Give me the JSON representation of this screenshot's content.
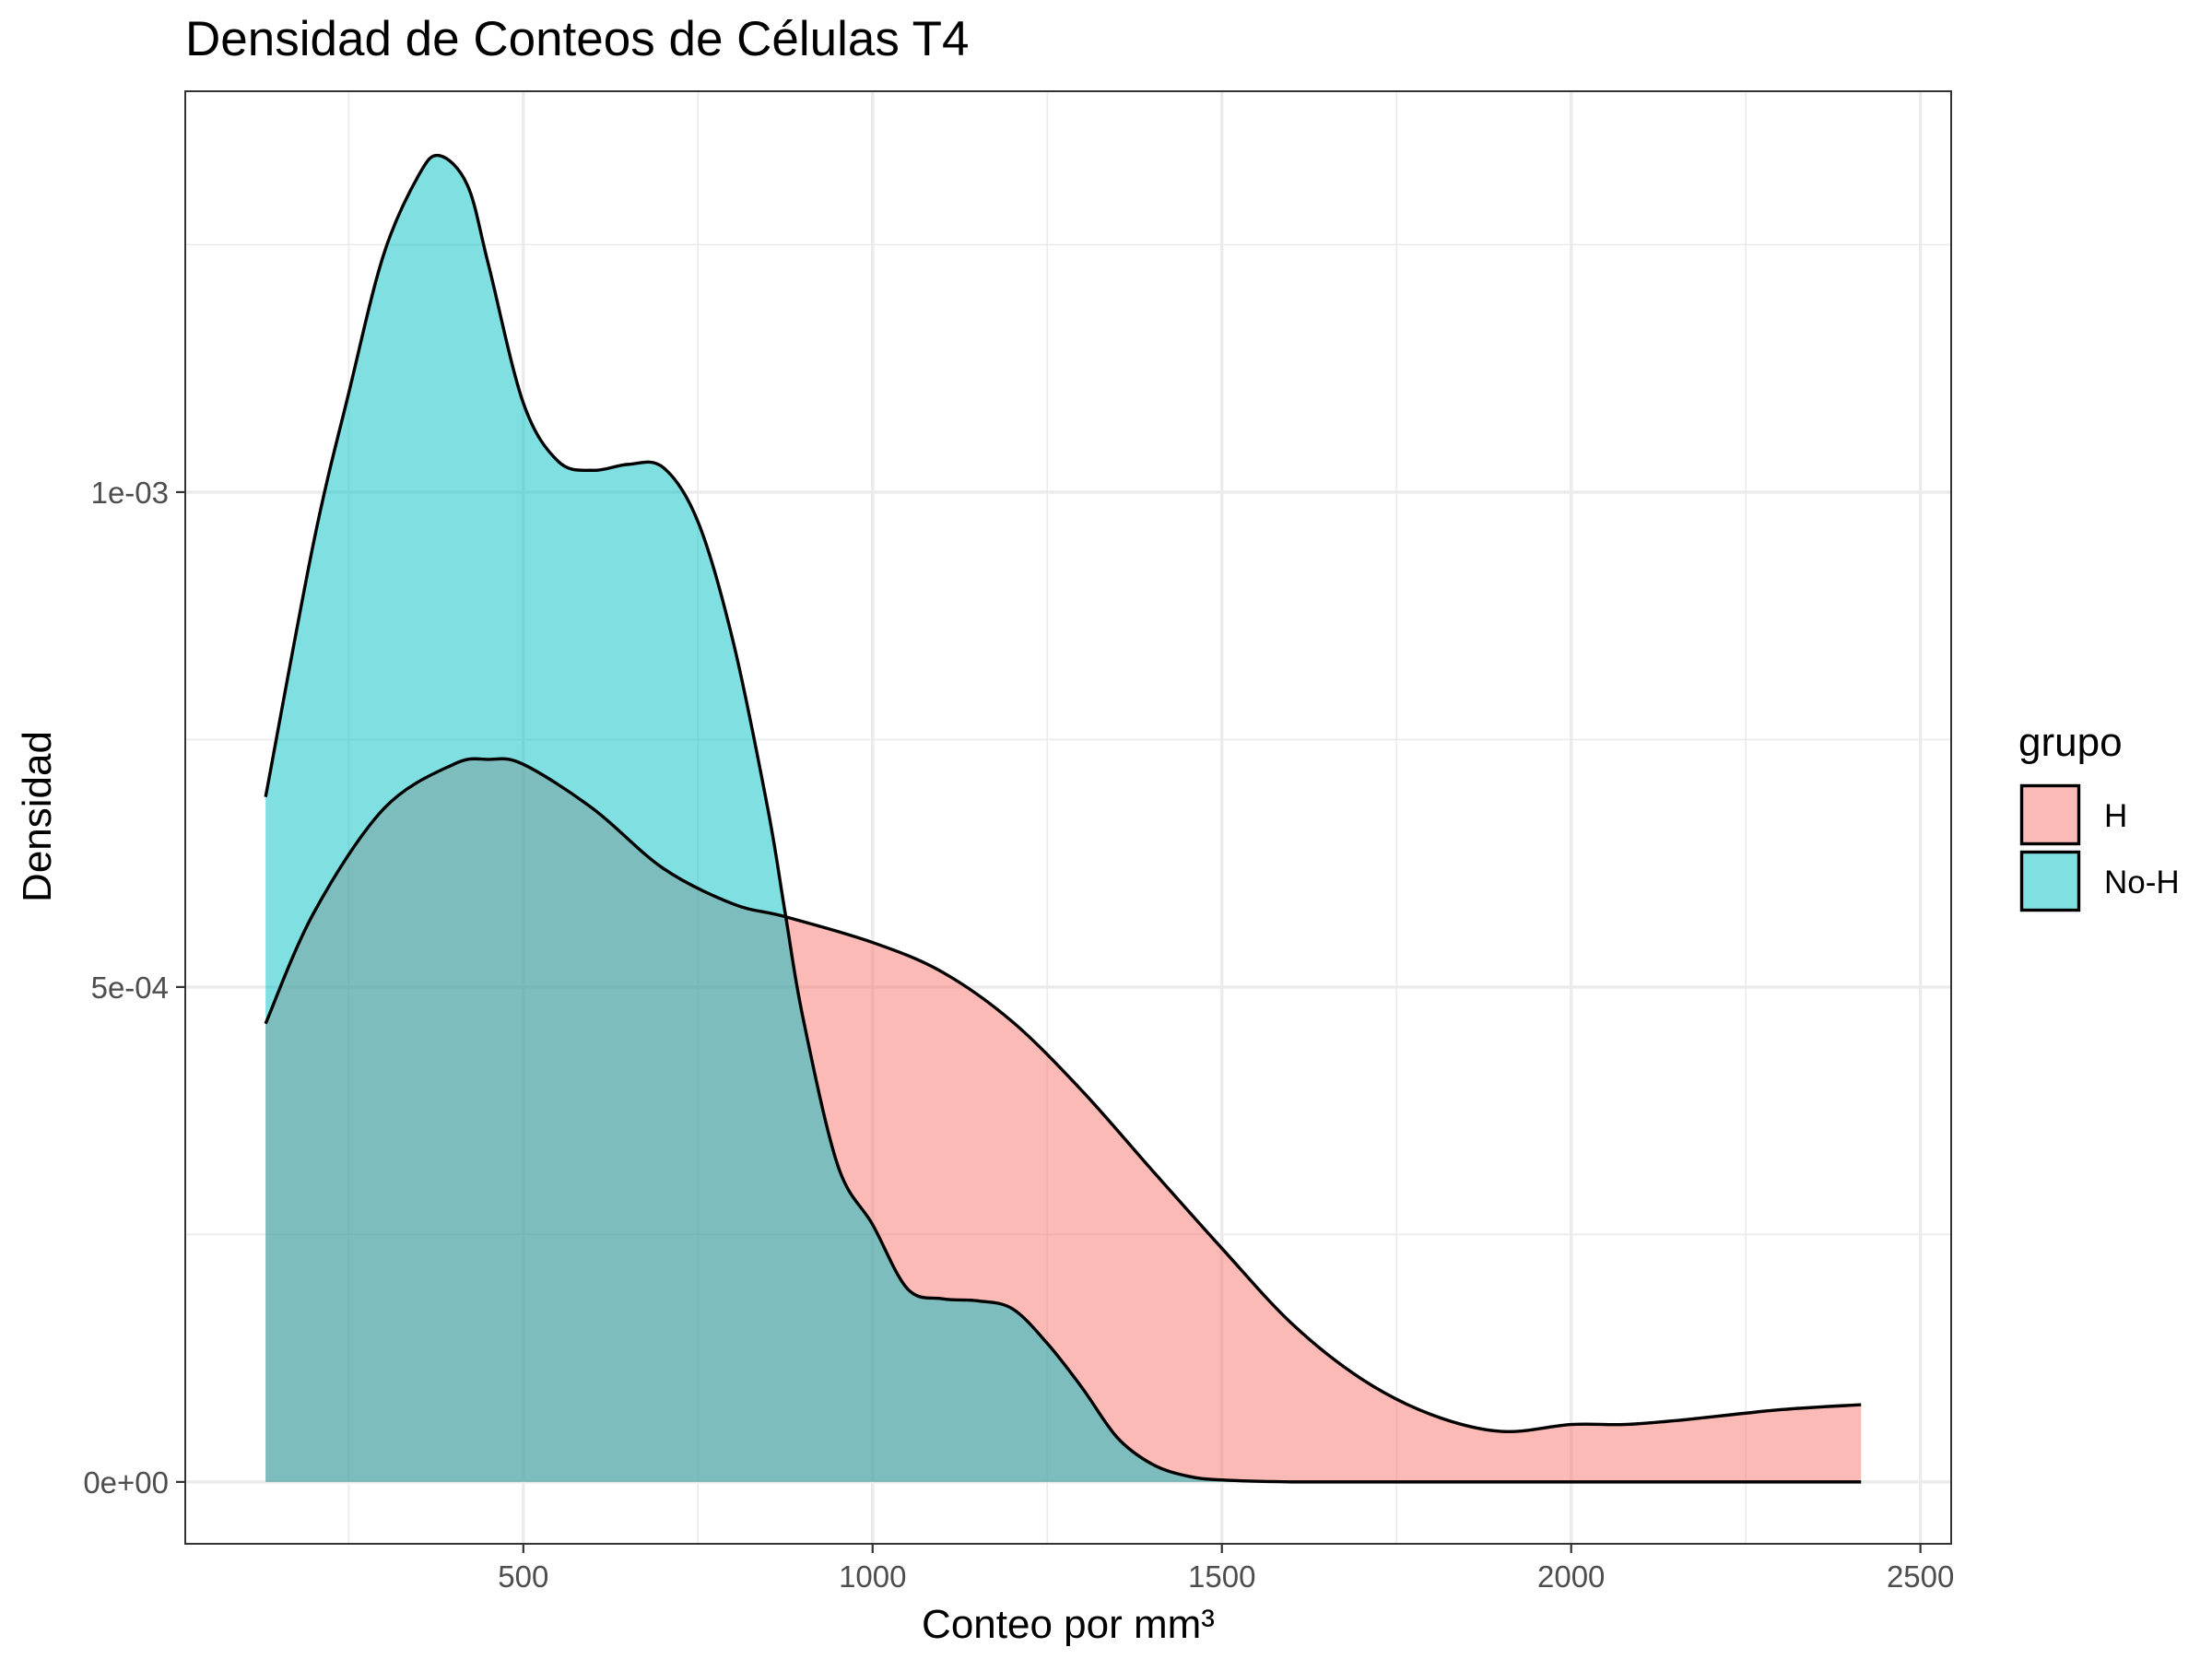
{
  "chart_data": {
    "type": "area",
    "title": "Densidad de Conteos de Células T4",
    "xlabel": "Conteo por mm³",
    "ylabel": "Densidad",
    "xlim": [
      16,
      2544
    ],
    "ylim": [
      -6.25e-05,
      0.001405
    ],
    "x_ticks": [
      500,
      1000,
      1500,
      2000,
      2500
    ],
    "x_tick_labels": [
      "500",
      "1000",
      "1500",
      "2000",
      "2500"
    ],
    "y_ticks": [
      0,
      0.0005,
      0.001
    ],
    "y_tick_labels": [
      "0e+00",
      "5e-04",
      "1e-03"
    ],
    "grid": true,
    "legend": {
      "title": "grupo",
      "position": "right"
    },
    "series": [
      {
        "name": "H",
        "color": "#F8766D",
        "opacity": 0.5,
        "x": [
          131,
          200,
          300,
          400,
          450,
          500,
          600,
          700,
          800,
          875,
          1000,
          1100,
          1200,
          1300,
          1400,
          1500,
          1600,
          1700,
          1800,
          1900,
          2000,
          2075,
          2150,
          2300,
          2415
        ],
        "y": [
          0.000463,
          0.000575,
          0.00068,
          0.000725,
          0.00073,
          0.000725,
          0.00068,
          0.00062,
          0.000584,
          0.000571,
          0.000545,
          0.000515,
          0.000465,
          0.000395,
          0.000315,
          0.000236,
          0.00016,
          0.000104,
          6.8e-05,
          5.1e-05,
          5.8e-05,
          5.8e-05,
          6.2e-05,
          7.3e-05,
          7.8e-05
        ]
      },
      {
        "name": "No-H",
        "color": "#00BFC4",
        "opacity": 0.5,
        "x": [
          131,
          200,
          250,
          300,
          350,
          380,
          420,
          450,
          500,
          550,
          600,
          650,
          700,
          750,
          800,
          850,
          875,
          900,
          950,
          1000,
          1050,
          1100,
          1150,
          1200,
          1250,
          1300,
          1350,
          1400,
          1450,
          1500,
          1600,
          1700,
          1800,
          2000,
          2200,
          2415
        ],
        "y": [
          0.000692,
          0.00095,
          0.0011,
          0.00124,
          0.00132,
          0.00134,
          0.00131,
          0.00123,
          0.00109,
          0.001031,
          0.001022,
          0.001028,
          0.001025,
          0.00097,
          0.00085,
          0.00068,
          0.000574,
          0.00047,
          0.00032,
          0.00026,
          0.000195,
          0.000185,
          0.000183,
          0.000175,
          0.00014,
          9.5e-05,
          4.5e-05,
          1.8e-05,
          6e-06,
          2e-06,
          0.0,
          0.0,
          0.0,
          0.0,
          0.0,
          0.0
        ]
      }
    ]
  }
}
